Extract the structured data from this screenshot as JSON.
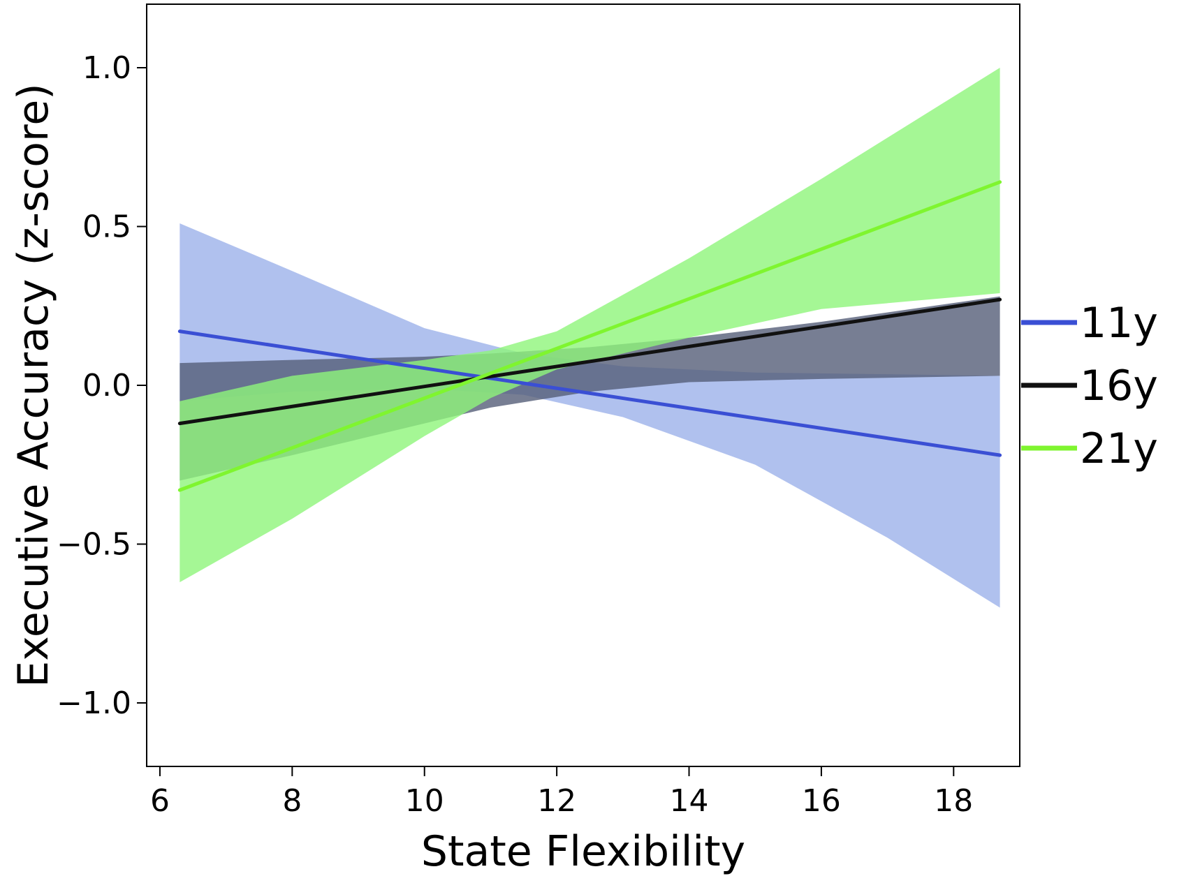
{
  "chart_data": {
    "type": "line",
    "title": "",
    "xlabel": "State Flexibility",
    "ylabel": "Executive Accuracy (z-score)",
    "xlim": [
      5.8,
      19.0
    ],
    "ylim": [
      -1.2,
      1.2
    ],
    "xticks": [
      6,
      8,
      10,
      12,
      14,
      16,
      18
    ],
    "yticks": [
      1.0,
      0.5,
      0.0,
      -0.5,
      -1.0
    ],
    "ytick_labels": [
      "1.0",
      "0.5",
      "0.0",
      "−0.5",
      "−1.0"
    ],
    "grid": false,
    "legend_position": "right",
    "series": [
      {
        "name": "11y",
        "color": "#3a4fd4",
        "band_color": "#9cb2ea",
        "x": [
          6.3,
          18.7
        ],
        "y": [
          0.17,
          -0.22
        ],
        "band": {
          "x": [
            6.3,
            8,
            10,
            11.5,
            13,
            15,
            17,
            18.7
          ],
          "upper": [
            0.51,
            0.36,
            0.18,
            0.1,
            0.06,
            0.04,
            0.035,
            0.03
          ],
          "lower": [
            -0.05,
            -0.02,
            -0.01,
            -0.03,
            -0.1,
            -0.25,
            -0.48,
            -0.7
          ]
        }
      },
      {
        "name": "16y",
        "color": "#111111",
        "band_color": "#555e78",
        "x": [
          6.3,
          18.7
        ],
        "y": [
          -0.12,
          0.27
        ],
        "band": {
          "x": [
            6.3,
            8,
            10,
            11,
            12.5,
            14,
            16,
            18.7
          ],
          "upper": [
            0.07,
            0.08,
            0.09,
            0.1,
            0.12,
            0.15,
            0.2,
            0.28
          ],
          "lower": [
            -0.3,
            -0.22,
            -0.12,
            -0.07,
            -0.02,
            0.01,
            0.02,
            0.03
          ]
        }
      },
      {
        "name": "21y",
        "color": "#7ff52f",
        "band_color": "#8ff57a",
        "x": [
          6.3,
          18.7
        ],
        "y": [
          -0.33,
          0.64
        ],
        "band": {
          "x": [
            6.3,
            8,
            10,
            11,
            12,
            14,
            16,
            18.7
          ],
          "upper": [
            -0.05,
            0.03,
            0.08,
            0.11,
            0.17,
            0.4,
            0.65,
            1.0
          ],
          "lower": [
            -0.62,
            -0.42,
            -0.16,
            -0.04,
            0.05,
            0.15,
            0.24,
            0.29
          ]
        }
      }
    ]
  }
}
